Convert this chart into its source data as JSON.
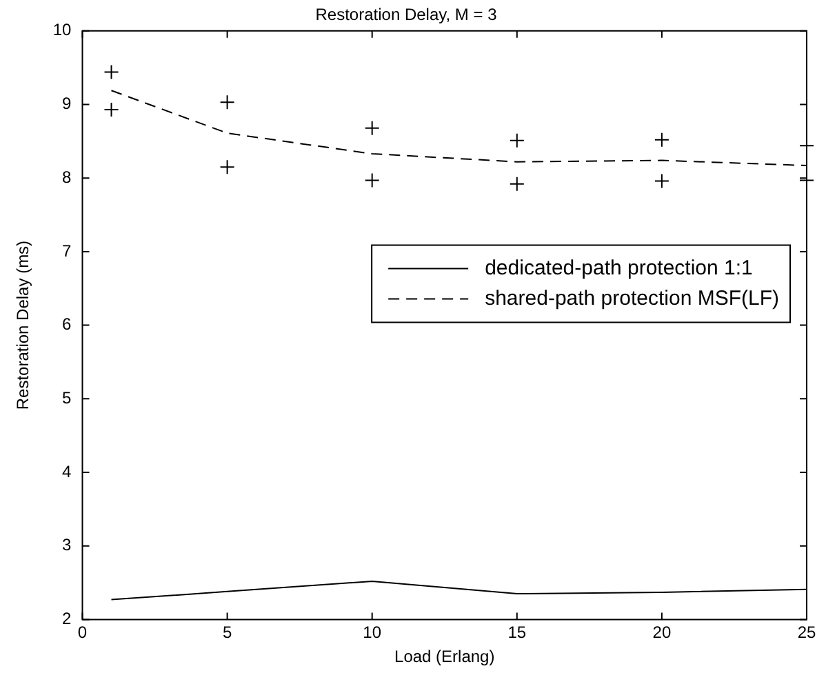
{
  "chart_data": {
    "type": "line",
    "title": "Restoration Delay, M = 3",
    "xlabel": "Load (Erlang)",
    "ylabel": "Restoration Delay (ms)",
    "x": [
      1,
      5,
      10,
      15,
      20,
      25
    ],
    "series": [
      {
        "name": "dedicated-path protection 1:1",
        "color": "#000000",
        "line_style": "solid",
        "marker": "none",
        "values": [
          2.27,
          2.38,
          2.52,
          2.35,
          2.37,
          2.41
        ]
      },
      {
        "name": "shared-path protection MSF(LF)",
        "color": "#000000",
        "line_style": "dashed",
        "marker": "none",
        "values": [
          9.19,
          8.61,
          8.33,
          8.22,
          8.24,
          8.17
        ]
      },
      {
        "type": "scatter",
        "color": "#000000",
        "marker": "cross",
        "x": [
          1,
          1,
          5,
          5,
          10,
          10,
          15,
          15,
          20,
          20,
          25,
          25
        ],
        "values": [
          9.44,
          8.93,
          9.03,
          8.15,
          8.68,
          7.97,
          8.51,
          7.92,
          8.52,
          7.96,
          8.44,
          7.97
        ]
      }
    ],
    "xlim": [
      0,
      25
    ],
    "xticks": [
      0,
      5,
      10,
      15,
      20,
      25
    ],
    "ylim": [
      2,
      10
    ],
    "yticks": [
      2,
      3,
      4,
      5,
      6,
      7,
      8,
      9,
      10
    ],
    "grid": false,
    "legend": "right"
  }
}
